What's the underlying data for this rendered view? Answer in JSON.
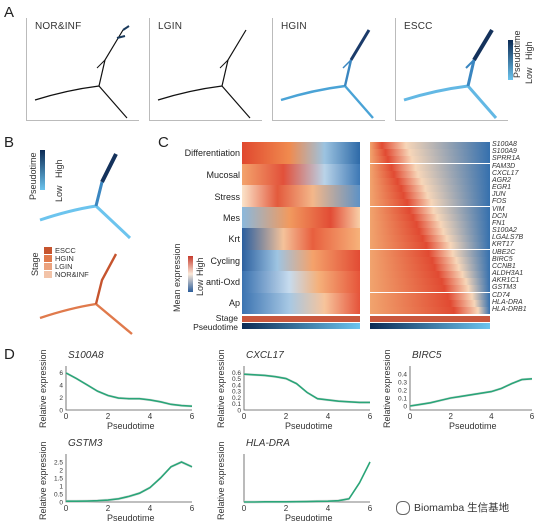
{
  "panels": {
    "A": "A",
    "B": "B",
    "C": "C",
    "D": "D"
  },
  "panel_a": {
    "titles": [
      "NOR&INF",
      "LGIN",
      "HGIN",
      "ESCC"
    ],
    "legend": {
      "title": "Pseudotime",
      "high": "High",
      "low": "Low"
    }
  },
  "panel_b": {
    "pseudotime_legend": {
      "title": "Pseudotime",
      "high": "High",
      "low": "Low"
    },
    "stage_legend": {
      "title": "Stage",
      "items": [
        {
          "label": "ESCC",
          "color": "#c6542e"
        },
        {
          "label": "HGIN",
          "color": "#e07a4c"
        },
        {
          "label": "LGIN",
          "color": "#eba27d"
        },
        {
          "label": "NOR&INF",
          "color": "#f2c3a8"
        }
      ]
    }
  },
  "panel_c": {
    "row_labels": [
      "Differentiation",
      "Mucosal",
      "Stress",
      "Mes",
      "Krt",
      "Cycling",
      "anti-Oxd",
      "Ap"
    ],
    "legend": {
      "title": "Mean expression",
      "high": "High",
      "low": "Low"
    },
    "bar_labels": [
      "Stage",
      "Pseudotime"
    ],
    "genes": [
      "S100A8",
      "S100A9",
      "SPRR1A",
      "FAM3D",
      "CXCL17",
      "AGR2",
      "EGR1",
      "JUN",
      "FOS",
      "VIM",
      "DCN",
      "FN1",
      "S100A2",
      "LGALS7B",
      "KRT17",
      "UBE2C",
      "BIRC5",
      "CCNB1",
      "ALDH3A1",
      "AKR1C1",
      "GSTM3",
      "CD74",
      "HLA-DRA",
      "HLA-DRB1"
    ]
  },
  "panel_d": {
    "ylabel": "Relative expression",
    "xlabel": "Pseudotime",
    "accent": "#2aa578"
  },
  "chart_data": [
    {
      "type": "line",
      "title": "S100A8",
      "xlabel": "Pseudotime",
      "ylabel": "Relative expression",
      "x": [
        0,
        0.5,
        1,
        1.5,
        2,
        2.5,
        3,
        3.5,
        4,
        4.5,
        5,
        5.5,
        6
      ],
      "xlim": [
        0,
        6
      ],
      "ylim": [
        0,
        7
      ],
      "yticks": [
        0,
        2,
        4,
        6
      ],
      "xticks": [
        0,
        2,
        4,
        6
      ],
      "values": [
        5.9,
        5.0,
        4.0,
        3.0,
        2.3,
        1.9,
        1.8,
        1.8,
        1.6,
        1.3,
        0.9,
        0.7,
        0.6
      ]
    },
    {
      "type": "line",
      "title": "CXCL17",
      "xlabel": "Pseudotime",
      "ylabel": "Relative expression",
      "x": [
        0,
        0.5,
        1,
        1.5,
        2,
        2.5,
        3,
        3.5,
        4,
        4.5,
        5,
        5.5,
        6
      ],
      "xlim": [
        0,
        6
      ],
      "ylim": [
        0,
        0.7
      ],
      "yticks": [
        0,
        0.1,
        0.2,
        0.3,
        0.4,
        0.5,
        0.6
      ],
      "xticks": [
        0,
        2,
        4,
        6
      ],
      "values": [
        0.57,
        0.56,
        0.55,
        0.53,
        0.5,
        0.42,
        0.28,
        0.18,
        0.16,
        0.14,
        0.13,
        0.12,
        0.12
      ]
    },
    {
      "type": "line",
      "title": "BIRC5",
      "xlabel": "Pseudotime",
      "ylabel": "Relative expression",
      "x": [
        0,
        0.5,
        1,
        1.5,
        2,
        2.5,
        3,
        3.5,
        4,
        4.5,
        5,
        5.5,
        6
      ],
      "xlim": [
        0,
        6
      ],
      "ylim": [
        -0.05,
        0.5
      ],
      "yticks": [
        0,
        0.1,
        0.2,
        0.3,
        0.4
      ],
      "xticks": [
        0,
        2,
        4,
        6
      ],
      "values": [
        0.0,
        0.02,
        0.04,
        0.07,
        0.1,
        0.12,
        0.14,
        0.16,
        0.18,
        0.22,
        0.28,
        0.33,
        0.34
      ]
    },
    {
      "type": "line",
      "title": "GSTM3",
      "xlabel": "Pseudotime",
      "ylabel": "Relative expression",
      "x": [
        0,
        0.5,
        1,
        1.5,
        2,
        2.5,
        3,
        3.5,
        4,
        4.5,
        5,
        5.5,
        6
      ],
      "xlim": [
        0,
        6
      ],
      "ylim": [
        0,
        3
      ],
      "yticks": [
        0,
        0.5,
        1.0,
        1.5,
        2.0,
        2.5
      ],
      "xticks": [
        0,
        2,
        4,
        6
      ],
      "values": [
        0.05,
        0.05,
        0.06,
        0.08,
        0.12,
        0.2,
        0.35,
        0.55,
        0.9,
        1.5,
        2.2,
        2.5,
        2.2
      ]
    },
    {
      "type": "line",
      "title": "HLA-DRA",
      "xlabel": "Pseudotime",
      "ylabel": "Relative expression",
      "x": [
        0,
        0.5,
        1,
        1.5,
        2,
        2.5,
        3,
        3.5,
        4,
        4.5,
        5,
        5.5,
        6
      ],
      "xlim": [
        0,
        6
      ],
      "ylim": [
        0,
        3
      ],
      "yticks": [],
      "xticks": [
        0,
        2,
        4,
        6
      ],
      "values": [
        0.0,
        0.0,
        0.01,
        0.01,
        0.01,
        0.02,
        0.03,
        0.04,
        0.05,
        0.08,
        0.2,
        1.2,
        2.5
      ]
    }
  ],
  "watermark": "Biomamba 生信基地"
}
